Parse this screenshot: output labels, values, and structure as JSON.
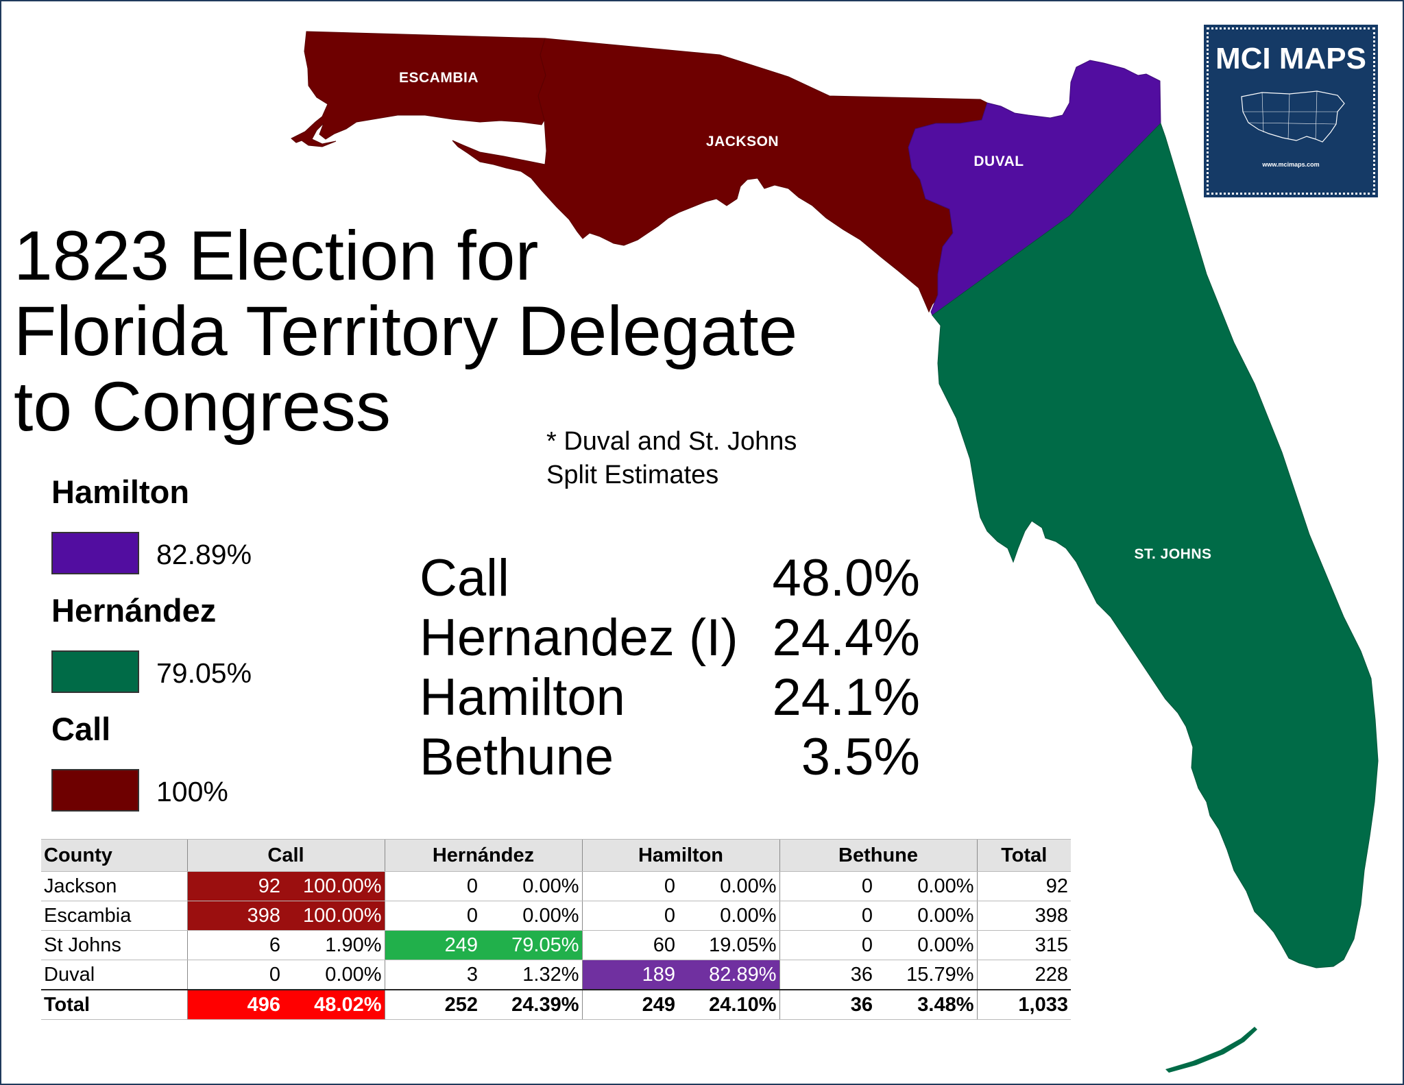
{
  "title_lines": [
    "1823 Election for",
    "Florida Territory Delegate",
    "to Congress"
  ],
  "note_lines": [
    "* Duval and St. Johns",
    "Split Estimates"
  ],
  "map": {
    "counties": [
      {
        "name": "ESCAMBIA",
        "winner": "Call",
        "color": "#6e0000"
      },
      {
        "name": "JACKSON",
        "winner": "Call",
        "color": "#6e0000"
      },
      {
        "name": "DUVAL",
        "winner": "Hamilton",
        "color": "#520da0"
      },
      {
        "name": "ST. JOHNS",
        "winner": "Hernández",
        "color": "#006b47"
      }
    ]
  },
  "legend": [
    {
      "name": "Hamilton",
      "color": "#520da0",
      "value": "82.89%"
    },
    {
      "name": "Hernández",
      "color": "#006b47",
      "value": "79.05%"
    },
    {
      "name": "Call",
      "color": "#6e0000",
      "value": "100%"
    }
  ],
  "results": [
    {
      "name": "Call",
      "pct": "48.0%"
    },
    {
      "name": "Hernandez (I)",
      "pct": "24.4%"
    },
    {
      "name": "Hamilton",
      "pct": "24.1%"
    },
    {
      "name": "Bethune",
      "pct": "3.5%"
    }
  ],
  "logo": {
    "title": "MCI MAPS",
    "url": "www.mcimaps.com"
  },
  "table": {
    "headers": [
      "County",
      "Call",
      "Hernández",
      "Hamilton",
      "Bethune",
      "Total"
    ],
    "rows": [
      {
        "county": "Jackson",
        "call_v": "92",
        "call_p": "100.00%",
        "hern_v": "0",
        "hern_p": "0.00%",
        "ham_v": "0",
        "ham_p": "0.00%",
        "beth_v": "0",
        "beth_p": "0.00%",
        "total": "92"
      },
      {
        "county": "Escambia",
        "call_v": "398",
        "call_p": "100.00%",
        "hern_v": "0",
        "hern_p": "0.00%",
        "ham_v": "0",
        "ham_p": "0.00%",
        "beth_v": "0",
        "beth_p": "0.00%",
        "total": "398"
      },
      {
        "county": "St Johns",
        "call_v": "6",
        "call_p": "1.90%",
        "hern_v": "249",
        "hern_p": "79.05%",
        "ham_v": "60",
        "ham_p": "19.05%",
        "beth_v": "0",
        "beth_p": "0.00%",
        "total": "315"
      },
      {
        "county": "Duval",
        "call_v": "0",
        "call_p": "0.00%",
        "hern_v": "3",
        "hern_p": "1.32%",
        "ham_v": "189",
        "ham_p": "82.89%",
        "beth_v": "36",
        "beth_p": "15.79%",
        "total": "228"
      }
    ],
    "total": {
      "county": "Total",
      "call_v": "496",
      "call_p": "48.02%",
      "hern_v": "252",
      "hern_p": "24.39%",
      "ham_v": "249",
      "ham_p": "24.10%",
      "beth_v": "36",
      "beth_p": "3.48%",
      "total": "1,033"
    }
  }
}
